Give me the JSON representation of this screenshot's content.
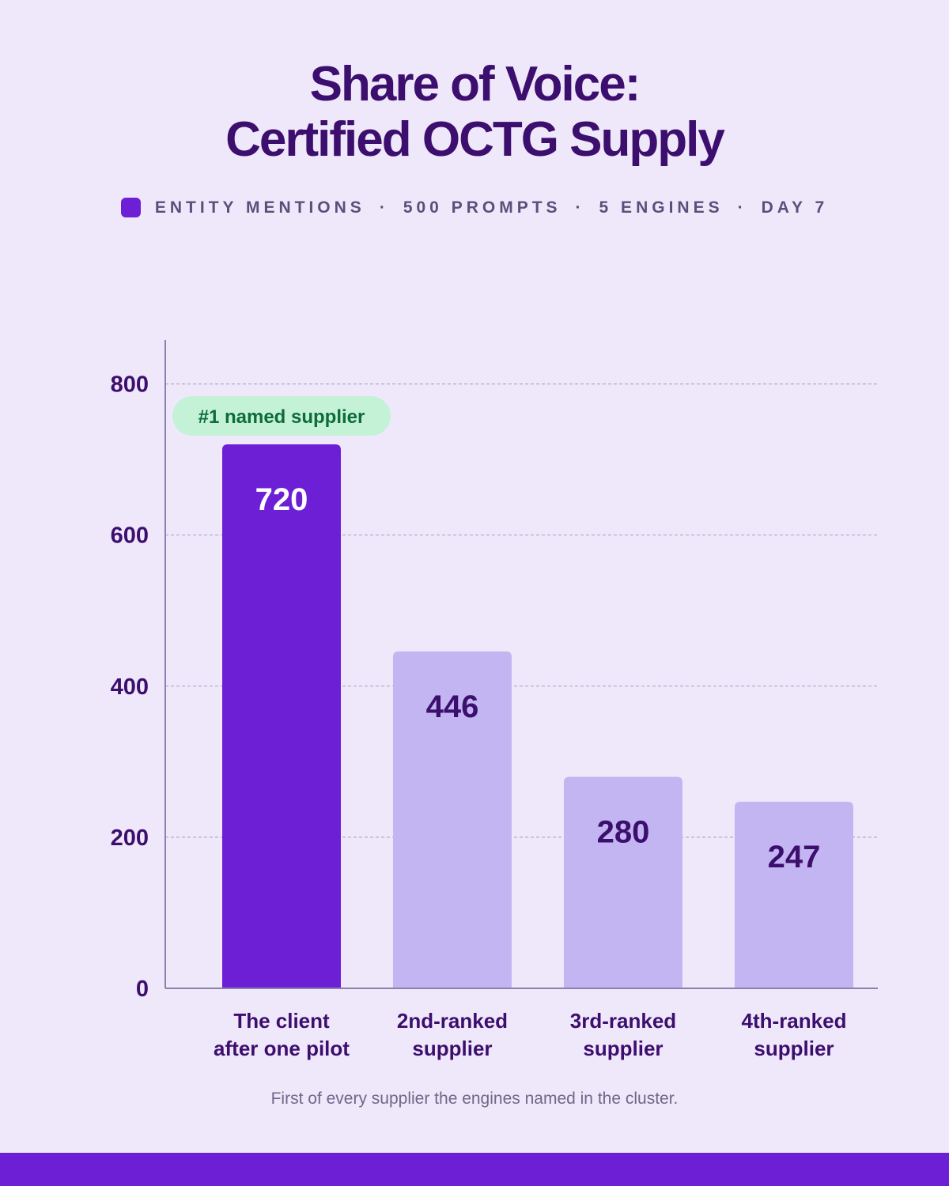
{
  "title": {
    "line1": "Share of Voice:",
    "line2": "Certified OCTG Supply"
  },
  "legend": {
    "swatch_color": "#6d1fd6",
    "items": [
      "ENTITY MENTIONS",
      "500 PROMPTS",
      "5 ENGINES",
      "DAY 7"
    ],
    "separator": "·"
  },
  "chart_data": {
    "type": "bar",
    "categories": [
      [
        "The client",
        "after one pilot"
      ],
      [
        "2nd-ranked",
        "supplier"
      ],
      [
        "3rd-ranked",
        "supplier"
      ],
      [
        "4th-ranked",
        "supplier"
      ]
    ],
    "values": [
      720,
      446,
      280,
      247
    ],
    "ylim": [
      0,
      860
    ],
    "yticks": [
      0,
      200,
      400,
      600,
      800
    ],
    "grid": true,
    "highlight_index": 0,
    "annotation": {
      "text": "#1 named supplier",
      "bar_index": 0
    },
    "colors": {
      "highlight": "#6d1fd6",
      "normal": "#c3b5f1",
      "value_on_highlight": "#ffffff",
      "value_on_normal": "#3c0e6e",
      "axis": "#8a81ac",
      "grid": "#b1a8cf",
      "tick_label": "#3c0e6e",
      "badge_bg": "#c3f2d6",
      "badge_text": "#0e6b3a"
    }
  },
  "footnote": "First of every supplier the engines named in the cluster."
}
